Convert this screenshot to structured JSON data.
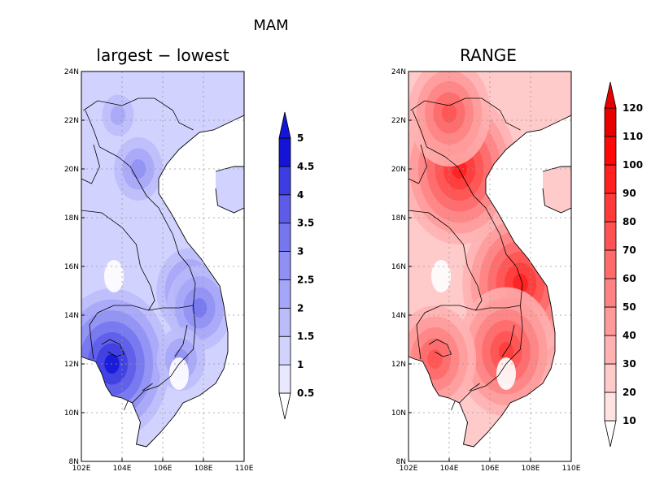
{
  "figure_title": "MAM",
  "panels": [
    {
      "title": "largest − lowest",
      "palette": [
        "#ffffff",
        "#e8e8ff",
        "#d2d2ff",
        "#bcbcfb",
        "#a6a6f8",
        "#9090f4",
        "#7676ef",
        "#5c5ce9",
        "#3d3de2",
        "#1414d8"
      ],
      "colorbar_labels": [
        "0.5",
        "1",
        "1.5",
        "2",
        "2.5",
        "3",
        "3.5",
        "4",
        "4.5",
        "5"
      ],
      "hotspots": [
        {
          "lon": 103.5,
          "lat": 12.0,
          "level": 9
        },
        {
          "lon": 107.3,
          "lat": 15.0,
          "level": 6
        },
        {
          "lon": 107.8,
          "lat": 14.3,
          "level": 6
        },
        {
          "lon": 104.8,
          "lat": 20.0,
          "level": 5
        },
        {
          "lon": 106.9,
          "lat": 12.2,
          "level": 5
        },
        {
          "lon": 103.8,
          "lat": 22.2,
          "level": 4
        }
      ]
    },
    {
      "title": "RANGE",
      "palette": [
        "#ffffff",
        "#ffe2e2",
        "#ffcaca",
        "#ffb2b2",
        "#ff9a9a",
        "#ff8282",
        "#ff6a6a",
        "#ff5252",
        "#ff3a3a",
        "#ff2020",
        "#ff0808",
        "#e80000"
      ],
      "colorbar_labels": [
        "10",
        "20",
        "30",
        "40",
        "50",
        "60",
        "70",
        "80",
        "90",
        "100",
        "110",
        "120"
      ],
      "hotspots": [
        {
          "lon": 108.2,
          "lat": 14.5,
          "level": 10
        },
        {
          "lon": 107.5,
          "lat": 15.3,
          "level": 9
        },
        {
          "lon": 104.5,
          "lat": 20.0,
          "level": 9
        },
        {
          "lon": 106.8,
          "lat": 12.5,
          "level": 8
        },
        {
          "lon": 104.0,
          "lat": 22.3,
          "level": 7
        },
        {
          "lon": 103.3,
          "lat": 12.2,
          "level": 7
        }
      ]
    }
  ],
  "lon_ticks": [
    "102E",
    "104E",
    "106E",
    "108E",
    "110E"
  ],
  "lat_ticks": [
    "8N",
    "10N",
    "12N",
    "14N",
    "16N",
    "18N",
    "20N",
    "22N",
    "24N"
  ],
  "extent": {
    "lon": [
      102,
      110
    ],
    "lat": [
      8,
      24
    ]
  }
}
